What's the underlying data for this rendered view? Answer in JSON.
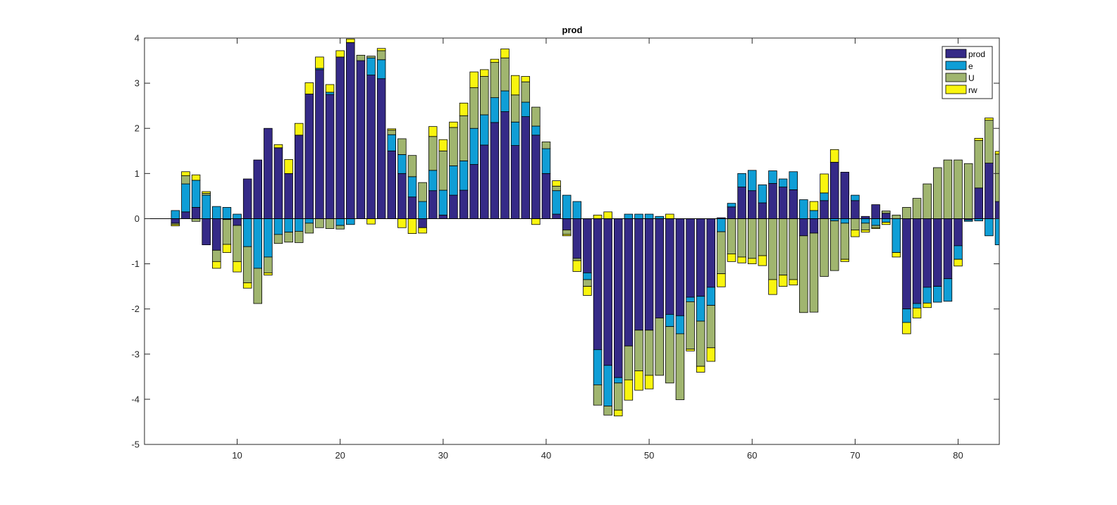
{
  "chart_data": {
    "type": "bar",
    "stacked": true,
    "title": "prod",
    "xlabel": "",
    "ylabel": "",
    "xlim": [
      1,
      84
    ],
    "ylim": [
      -5,
      4
    ],
    "xticks": [
      10,
      20,
      30,
      40,
      50,
      60,
      70,
      80
    ],
    "yticks": [
      -5,
      -4,
      -3,
      -2,
      -1,
      0,
      1,
      2,
      3,
      4
    ],
    "grid": false,
    "legend_position": "top-right",
    "x": [
      4,
      5,
      6,
      7,
      8,
      9,
      10,
      11,
      12,
      13,
      14,
      15,
      16,
      17,
      18,
      19,
      20,
      21,
      22,
      23,
      24,
      25,
      26,
      27,
      28,
      29,
      30,
      31,
      32,
      33,
      34,
      35,
      36,
      37,
      38,
      39,
      40,
      41,
      42,
      43,
      44,
      45,
      46,
      47,
      48,
      49,
      50,
      51,
      52,
      53,
      54,
      55,
      56,
      57,
      58,
      59,
      60,
      61,
      62,
      63,
      64,
      65,
      66,
      67,
      68,
      69,
      70,
      71,
      72,
      73,
      74,
      75,
      76,
      77,
      78,
      79,
      80,
      81,
      82,
      83,
      84
    ],
    "series": [
      {
        "name": "prod",
        "color": "#352a87",
        "values": [
          -0.1,
          0.15,
          0.25,
          -0.58,
          -0.7,
          -0.02,
          -0.15,
          0.88,
          1.3,
          2.0,
          1.57,
          1.0,
          1.85,
          2.76,
          3.3,
          2.75,
          3.58,
          3.9,
          3.5,
          3.18,
          3.1,
          1.5,
          1.0,
          0.48,
          -0.2,
          0.62,
          0.08,
          0.52,
          0.63,
          1.2,
          1.63,
          2.13,
          2.37,
          1.62,
          2.26,
          1.85,
          1.0,
          0.1,
          -0.25,
          -0.88,
          -1.2,
          -2.9,
          -3.25,
          -3.52,
          -2.82,
          -2.47,
          -2.47,
          -2.2,
          -2.12,
          -2.15,
          -1.74,
          -1.72,
          -1.52,
          0.02,
          0.26,
          0.7,
          0.62,
          0.35,
          0.78,
          0.7,
          0.64,
          -0.38,
          -0.32,
          0.4,
          1.25,
          1.03,
          0.4,
          0.05,
          0.31,
          0.12,
          0.0,
          -2.0,
          -1.88,
          -1.52,
          -1.5,
          -1.33,
          -0.6,
          -0.03,
          0.68,
          1.23,
          0.38
        ]
      },
      {
        "name": "e",
        "color": "#0f9ed6",
        "values": [
          0.18,
          0.62,
          0.6,
          0.52,
          0.27,
          0.25,
          0.1,
          -0.62,
          -1.1,
          -0.85,
          -0.35,
          -0.3,
          -0.28,
          -0.1,
          0.03,
          0.05,
          -0.15,
          -0.13,
          0.0,
          0.38,
          0.42,
          0.36,
          0.42,
          0.45,
          0.38,
          0.45,
          0.55,
          0.65,
          0.65,
          0.8,
          0.67,
          0.55,
          0.46,
          0.52,
          0.32,
          0.2,
          0.55,
          0.52,
          0.52,
          0.38,
          -0.15,
          -0.78,
          -0.9,
          -0.12,
          0.1,
          0.1,
          0.1,
          0.05,
          -0.27,
          -0.4,
          -0.1,
          -0.55,
          -0.4,
          -0.29,
          0.08,
          0.3,
          0.45,
          0.4,
          0.28,
          0.18,
          0.4,
          0.42,
          0.18,
          0.17,
          -0.05,
          -0.1,
          0.12,
          -0.1,
          -0.15,
          -0.08,
          -0.75,
          -0.3,
          -0.1,
          -0.35,
          -0.35,
          -0.5,
          -0.3,
          -0.03,
          -0.05,
          -0.38,
          -0.58
        ]
      },
      {
        "name": "U",
        "color": "#a0b56f",
        "values": [
          -0.03,
          0.18,
          -0.06,
          0.04,
          -0.25,
          -0.55,
          -0.8,
          -0.8,
          -0.78,
          -0.35,
          -0.2,
          -0.22,
          -0.25,
          -0.22,
          -0.2,
          -0.22,
          -0.08,
          0.0,
          0.12,
          0.04,
          0.2,
          0.1,
          0.35,
          0.47,
          0.42,
          0.75,
          0.87,
          0.85,
          1.0,
          0.9,
          0.85,
          0.78,
          0.73,
          0.6,
          0.45,
          0.42,
          0.15,
          0.1,
          -0.1,
          -0.05,
          -0.15,
          -0.45,
          -0.2,
          -0.6,
          -0.75,
          -0.9,
          -1.0,
          -1.27,
          -1.25,
          -1.46,
          -1.05,
          -1.0,
          -0.94,
          -0.93,
          -0.78,
          -0.85,
          -0.88,
          -0.82,
          -1.35,
          -1.25,
          -1.35,
          -1.7,
          -1.75,
          -1.28,
          -1.1,
          -0.8,
          -0.25,
          -0.15,
          -0.05,
          0.05,
          0.08,
          0.25,
          0.45,
          0.77,
          1.13,
          1.3,
          1.3,
          1.22,
          1.05,
          0.95,
          1.05
        ]
      },
      {
        "name": "rw",
        "color": "#f9f50f",
        "values": [
          -0.03,
          0.09,
          0.12,
          0.04,
          -0.15,
          -0.18,
          -0.23,
          -0.12,
          0.0,
          -0.05,
          0.07,
          0.31,
          0.26,
          0.25,
          0.25,
          0.17,
          0.14,
          0.08,
          0.0,
          -0.12,
          0.05,
          0.03,
          -0.2,
          -0.33,
          -0.12,
          0.22,
          0.25,
          0.12,
          0.28,
          0.35,
          0.15,
          0.07,
          0.2,
          0.43,
          0.12,
          -0.13,
          0.0,
          0.12,
          -0.03,
          -0.24,
          -0.2,
          0.08,
          0.15,
          -0.13,
          -0.45,
          -0.43,
          -0.3,
          0.0,
          0.1,
          0.0,
          -0.04,
          -0.13,
          -0.3,
          -0.29,
          -0.17,
          -0.13,
          -0.12,
          -0.22,
          -0.33,
          -0.25,
          -0.12,
          0.0,
          0.2,
          0.42,
          0.28,
          -0.05,
          -0.15,
          -0.05,
          -0.02,
          -0.05,
          -0.1,
          -0.25,
          -0.22,
          -0.1,
          0.0,
          0.0,
          -0.15,
          0.0,
          0.05,
          0.05,
          0.06
        ]
      }
    ]
  }
}
